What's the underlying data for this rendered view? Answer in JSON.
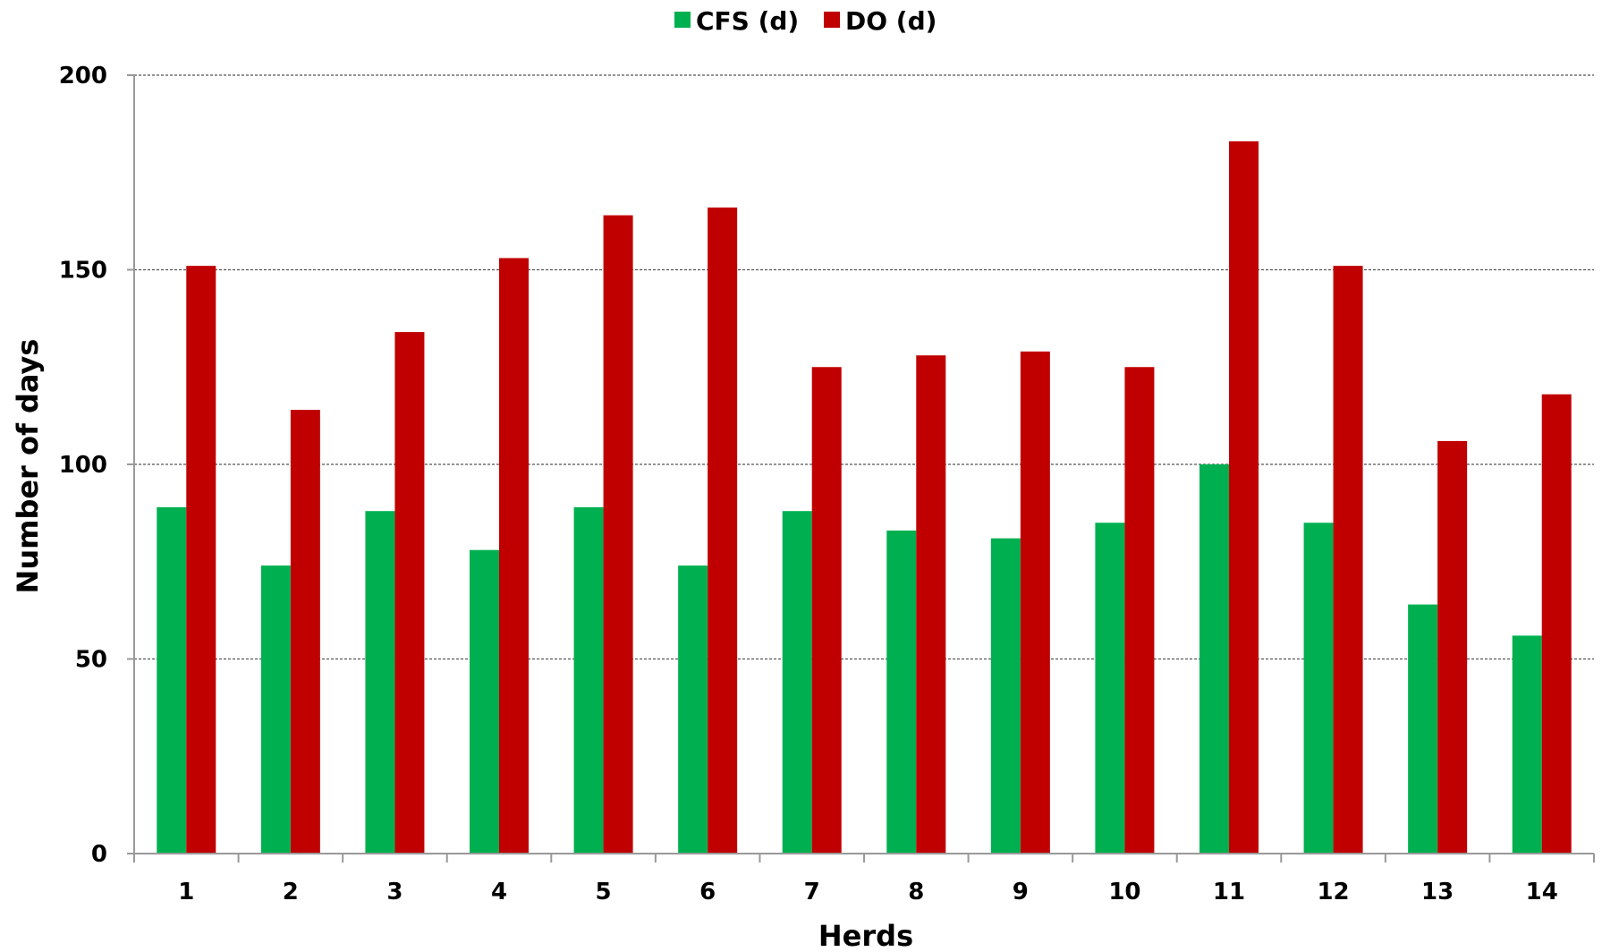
{
  "chart_data": {
    "type": "bar",
    "xlabel": "Herds",
    "ylabel": "Number of days",
    "categories": [
      "1",
      "2",
      "3",
      "4",
      "5",
      "6",
      "7",
      "8",
      "9",
      "10",
      "11",
      "12",
      "13",
      "14"
    ],
    "series": [
      {
        "name": "CFS (d)",
        "color": "#00b050",
        "values": [
          89,
          74,
          88,
          78,
          89,
          74,
          88,
          83,
          81,
          85,
          100,
          85,
          64,
          56
        ]
      },
      {
        "name": "DO (d)",
        "color": "#c00000",
        "values": [
          151,
          114,
          134,
          153,
          164,
          166,
          125,
          128,
          129,
          125,
          183,
          151,
          106,
          118
        ]
      }
    ],
    "ylim": [
      0,
      200
    ],
    "yticks": [
      "0",
      "50",
      "100",
      "150",
      "200"
    ],
    "grid": true,
    "legend_position": "top-center"
  }
}
